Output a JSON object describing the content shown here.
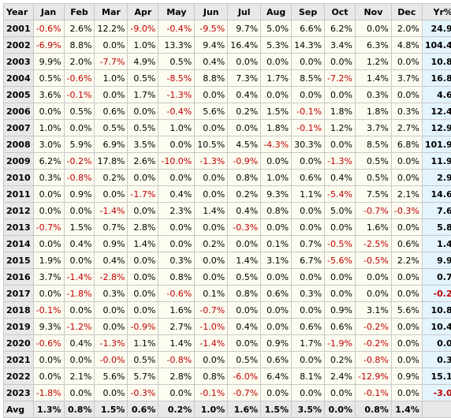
{
  "headers": [
    "Year",
    "Jan",
    "Feb",
    "Mar",
    "Apr",
    "May",
    "Jun",
    "Jul",
    "Aug",
    "Sep",
    "Oct",
    "Nov",
    "Dec",
    "Yr%"
  ],
  "rows": [
    {
      "year": "2001",
      "months": [
        "-0.6%",
        "2.6%",
        "12.2%",
        "-9.0%",
        "-0.4%",
        "-9.5%",
        "9.7%",
        "5.0%",
        "6.6%",
        "6.2%",
        "0.0%",
        "2.0%"
      ],
      "total": "24.9%"
    },
    {
      "year": "2002",
      "months": [
        "-6.9%",
        "8.8%",
        "0.0%",
        "1.0%",
        "13.3%",
        "9.4%",
        "16.4%",
        "5.3%",
        "14.3%",
        "3.4%",
        "6.3%",
        "4.8%"
      ],
      "total": "104.4%"
    },
    {
      "year": "2003",
      "months": [
        "9.9%",
        "2.0%",
        "-7.7%",
        "4.9%",
        "0.5%",
        "0.4%",
        "0.0%",
        "0.0%",
        "0.0%",
        "0.0%",
        "1.2%",
        "0.0%"
      ],
      "total": "10.8%"
    },
    {
      "year": "2004",
      "months": [
        "0.5%",
        "-0.6%",
        "1.0%",
        "0.5%",
        "-8.5%",
        "8.8%",
        "7.3%",
        "1.7%",
        "8.5%",
        "-7.2%",
        "1.4%",
        "3.7%"
      ],
      "total": "16.8%"
    },
    {
      "year": "2005",
      "months": [
        "3.6%",
        "-0.1%",
        "0.0%",
        "1.7%",
        "-1.3%",
        "0.0%",
        "0.4%",
        "0.0%",
        "0.0%",
        "0.0%",
        "0.3%",
        "0.0%"
      ],
      "total": "4.6%"
    },
    {
      "year": "2006",
      "months": [
        "0.0%",
        "0.5%",
        "0.6%",
        "0.0%",
        "-0.4%",
        "5.6%",
        "0.2%",
        "1.5%",
        "-0.1%",
        "1.8%",
        "1.8%",
        "0.3%"
      ],
      "total": "12.4%"
    },
    {
      "year": "2007",
      "months": [
        "1.0%",
        "0.0%",
        "0.5%",
        "0.5%",
        "1.0%",
        "0.0%",
        "0.0%",
        "1.8%",
        "-0.1%",
        "1.2%",
        "3.7%",
        "2.7%"
      ],
      "total": "12.9%"
    },
    {
      "year": "2008",
      "months": [
        "3.0%",
        "5.9%",
        "6.9%",
        "3.5%",
        "0.0%",
        "10.5%",
        "4.5%",
        "-4.3%",
        "30.3%",
        "0.0%",
        "8.5%",
        "6.8%"
      ],
      "total": "101.9%"
    },
    {
      "year": "2009",
      "months": [
        "6.2%",
        "-0.2%",
        "17.8%",
        "2.6%",
        "-10.0%",
        "-1.3%",
        "-0.9%",
        "0.0%",
        "0.0%",
        "-1.3%",
        "0.5%",
        "0.0%"
      ],
      "total": "11.9%"
    },
    {
      "year": "2010",
      "months": [
        "0.3%",
        "-0.8%",
        "0.2%",
        "0.0%",
        "0.0%",
        "0.0%",
        "0.8%",
        "1.0%",
        "0.6%",
        "0.4%",
        "0.5%",
        "0.0%"
      ],
      "total": "2.9%"
    },
    {
      "year": "2011",
      "months": [
        "0.0%",
        "0.9%",
        "0.0%",
        "-1.7%",
        "0.4%",
        "0.0%",
        "0.2%",
        "9.3%",
        "1.1%",
        "-5.4%",
        "7.5%",
        "2.1%"
      ],
      "total": "14.6%"
    },
    {
      "year": "2012",
      "months": [
        "0.0%",
        "0.0%",
        "-1.4%",
        "0.0%",
        "2.3%",
        "1.4%",
        "0.4%",
        "0.8%",
        "0.0%",
        "5.0%",
        "-0.7%",
        "-0.3%"
      ],
      "total": "7.6%"
    },
    {
      "year": "2013",
      "months": [
        "-0.7%",
        "1.5%",
        "0.7%",
        "2.8%",
        "0.0%",
        "0.0%",
        "-0.3%",
        "0.0%",
        "0.0%",
        "0.0%",
        "1.6%",
        "0.0%"
      ],
      "total": "5.8%"
    },
    {
      "year": "2014",
      "months": [
        "0.0%",
        "0.4%",
        "0.9%",
        "1.4%",
        "0.0%",
        "0.2%",
        "0.0%",
        "0.1%",
        "0.7%",
        "-0.5%",
        "-2.5%",
        "0.6%"
      ],
      "total": "1.4%"
    },
    {
      "year": "2015",
      "months": [
        "1.9%",
        "0.0%",
        "0.4%",
        "0.0%",
        "0.3%",
        "0.0%",
        "1.4%",
        "3.1%",
        "6.7%",
        "-5.6%",
        "-0.5%",
        "2.2%"
      ],
      "total": "9.9%"
    },
    {
      "year": "2016",
      "months": [
        "3.7%",
        "-1.4%",
        "-2.8%",
        "0.0%",
        "0.8%",
        "0.0%",
        "0.5%",
        "0.0%",
        "0.0%",
        "0.0%",
        "0.0%",
        "0.0%"
      ],
      "total": "0.7%"
    },
    {
      "year": "2017",
      "months": [
        "0.0%",
        "-1.8%",
        "0.3%",
        "0.0%",
        "-0.6%",
        "0.1%",
        "0.8%",
        "0.6%",
        "0.3%",
        "0.0%",
        "0.0%",
        "0.0%"
      ],
      "total": "-0.2%"
    },
    {
      "year": "2018",
      "months": [
        "-0.1%",
        "0.0%",
        "0.0%",
        "0.0%",
        "1.6%",
        "-0.7%",
        "0.0%",
        "0.0%",
        "0.0%",
        "0.9%",
        "3.1%",
        "5.6%"
      ],
      "total": "10.8%"
    },
    {
      "year": "2019",
      "months": [
        "9.3%",
        "-1.2%",
        "0.0%",
        "-0.9%",
        "2.7%",
        "-1.0%",
        "0.4%",
        "0.0%",
        "0.6%",
        "0.6%",
        "-0.2%",
        "0.0%"
      ],
      "total": "10.4%"
    },
    {
      "year": "2020",
      "months": [
        "-0.6%",
        "0.4%",
        "-1.3%",
        "1.1%",
        "1.4%",
        "-1.4%",
        "0.0%",
        "0.9%",
        "1.7%",
        "-1.9%",
        "-0.2%",
        "0.0%"
      ],
      "total": "0.0%"
    },
    {
      "year": "2021",
      "months": [
        "0.0%",
        "0.0%",
        "-0.0%",
        "0.5%",
        "-0.8%",
        "0.0%",
        "0.5%",
        "0.6%",
        "0.0%",
        "0.2%",
        "-0.8%",
        "0.0%"
      ],
      "total": "0.3%"
    },
    {
      "year": "2022",
      "months": [
        "0.0%",
        "2.1%",
        "5.6%",
        "5.7%",
        "2.8%",
        "0.8%",
        "-6.0%",
        "6.4%",
        "8.1%",
        "2.4%",
        "-12.9%",
        "0.9%"
      ],
      "total": "15.1%"
    },
    {
      "year": "2023",
      "months": [
        "-1.8%",
        "0.0%",
        "0.0%",
        "-0.3%",
        "0.0%",
        "-0.1%",
        "-0.7%",
        "0.0%",
        "0.0%",
        "0.0%",
        "-0.1%",
        "0.0%"
      ],
      "total": "-3.0%"
    }
  ],
  "avg": {
    "label": "Avg",
    "months": [
      "1.3%",
      "0.8%",
      "1.5%",
      "0.6%",
      "0.2%",
      "1.0%",
      "1.6%",
      "1.5%",
      "3.5%",
      "0.0%",
      "0.8%",
      "1.4%"
    ]
  },
  "colors": {
    "negative": "#c00000",
    "header": "#e8e8e8",
    "cell": "#fcfcf0",
    "total": "#e3f4ff",
    "border": "#c8c8c8"
  }
}
